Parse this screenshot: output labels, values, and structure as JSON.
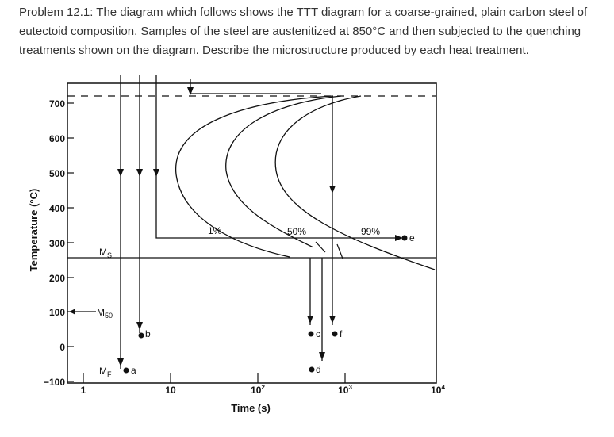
{
  "problem": {
    "text": "Problem 12.1: The diagram which follows shows the TTT diagram for a coarse-grained, plain carbon steel of eutectoid composition. Samples of the steel are austenitized at 850°C and then subjected to the quenching treatments shown on the diagram. Describe the microstructure produced by each heat treatment."
  },
  "diagram": {
    "y_axis_label": "Temperature (°C)",
    "x_axis_label": "Time (s)",
    "y_ticks": [
      "700",
      "600",
      "500",
      "400",
      "300",
      "200",
      "100",
      "0",
      "−100"
    ],
    "x_ticks": [
      {
        "base": "1",
        "exp": ""
      },
      {
        "base": "10",
        "exp": ""
      },
      {
        "base": "10",
        "exp": "2"
      },
      {
        "base": "10",
        "exp": "3"
      },
      {
        "base": "10",
        "exp": "4"
      }
    ],
    "ms_label": {
      "main": "M",
      "sub": "S"
    },
    "m50_label": {
      "main": "M",
      "sub": "50"
    },
    "mf_label": {
      "main": "M",
      "sub": "F"
    },
    "curve_labels": {
      "start": "1%",
      "mid": "50%",
      "end": "99%"
    },
    "point_labels": {
      "a": "a",
      "b": "b",
      "c": "c",
      "d": "d",
      "e": "e",
      "f": "f"
    }
  }
}
